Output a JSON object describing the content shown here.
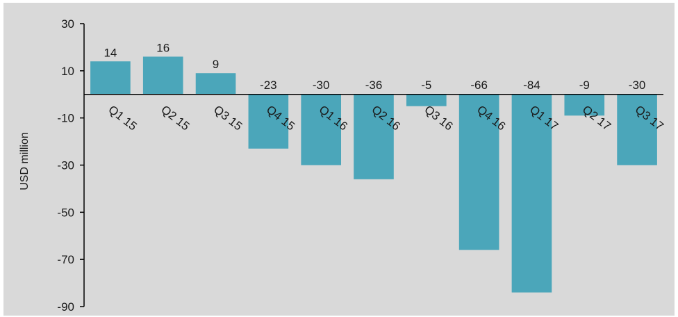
{
  "chart_data": {
    "type": "bar",
    "categories": [
      "Q1 15",
      "Q2 15",
      "Q3 15",
      "Q4 15",
      "Q1 16",
      "Q2 16",
      "Q3 16",
      "Q4 16",
      "Q1 17",
      "Q2 17",
      "Q3 17"
    ],
    "values": [
      14,
      16,
      9,
      -23,
      -30,
      -36,
      -5,
      -66,
      -84,
      -9,
      -30
    ],
    "data_labels": [
      "14",
      "16",
      "9",
      "-23",
      "-30",
      "-36",
      "-5",
      "-66",
      "-84",
      "-9",
      "-30"
    ],
    "ylabel": "USD million",
    "xlabel": "",
    "ylim": [
      -90,
      30
    ],
    "yticks": [
      "30",
      "10",
      "-10",
      "-30",
      "-50",
      "-70",
      "-90"
    ],
    "ytick_values": [
      30,
      10,
      -10,
      -30,
      -50,
      -70,
      -90
    ],
    "grid": false,
    "bar_color": "#4ba6ba",
    "background_color": "#d9d9d9"
  }
}
